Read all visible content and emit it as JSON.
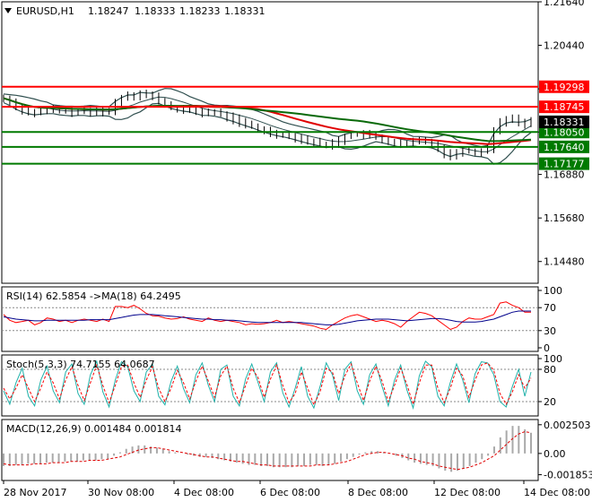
{
  "chart_data": [
    {
      "type": "candlestick",
      "title": "EURUSD,H1",
      "ohlc": {
        "open": "1.18247",
        "high": "1.18333",
        "low": "1.18233",
        "close": "1.18331"
      },
      "y_ticks": [
        "1.21640",
        "1.20440",
        "1.19240",
        "1.18050",
        "1.16880",
        "1.15680",
        "1.14480"
      ],
      "ylim": [
        1.1388,
        1.2164
      ],
      "horizontal_lines": [
        {
          "value": 1.19298,
          "label": "1.19298",
          "color": "#ff0000"
        },
        {
          "value": 1.18745,
          "label": "1.18745",
          "color": "#ff0000"
        },
        {
          "value": 1.1805,
          "label": "1.18050",
          "color": "#007a00"
        },
        {
          "value": 1.1764,
          "label": "1.17640",
          "color": "#007a00"
        },
        {
          "value": 1.17177,
          "label": "1.17177",
          "color": "#007a00"
        }
      ],
      "current_price": {
        "value": 1.18331,
        "label": "1.18331",
        "color": "#000000"
      },
      "price_series": [
        1.1898,
        1.1888,
        1.1875,
        1.1866,
        1.186,
        1.1858,
        1.1862,
        1.1865,
        1.1868,
        1.1866,
        1.1862,
        1.186,
        1.1864,
        1.1862,
        1.1858,
        1.1866,
        1.1862,
        1.186,
        1.1886,
        1.19,
        1.1908,
        1.1905,
        1.1912,
        1.1906,
        1.1902,
        1.1892,
        1.188,
        1.1872,
        1.1868,
        1.1866,
        1.1866,
        1.1862,
        1.1858,
        1.186,
        1.1858,
        1.1854,
        1.1846,
        1.184,
        1.1832,
        1.1826,
        1.182,
        1.1813,
        1.1808,
        1.1803,
        1.18,
        1.1798,
        1.1795,
        1.179,
        1.1785,
        1.178,
        1.1776,
        1.1772,
        1.1768,
        1.1774,
        1.1782,
        1.1792,
        1.1798,
        1.18,
        1.1798,
        1.1794,
        1.179,
        1.1784,
        1.1778,
        1.1772,
        1.1768,
        1.1774,
        1.1778,
        1.1782,
        1.178,
        1.1772,
        1.1762,
        1.1746,
        1.1738,
        1.175,
        1.1756,
        1.1752,
        1.1748,
        1.1754,
        1.176,
        1.1808,
        1.1833,
        1.1842,
        1.184,
        1.1832,
        1.1828,
        1.1833
      ]
    },
    {
      "type": "line",
      "title": "RSI(14) 62.5854  ->MA(18) 64.2495",
      "y_ticks": [
        "100",
        "70",
        "30",
        "0"
      ],
      "ylim": [
        0,
        100
      ],
      "levels": [
        30,
        70
      ],
      "series": [
        {
          "color": "#ff0000",
          "values": [
            58,
            48,
            44,
            46,
            48,
            40,
            44,
            52,
            50,
            46,
            48,
            44,
            48,
            50,
            48,
            46,
            50,
            46,
            72,
            72,
            70,
            74,
            68,
            60,
            56,
            55,
            52,
            50,
            51,
            54,
            50,
            48,
            46,
            52,
            48,
            46,
            48,
            46,
            44,
            40,
            42,
            41,
            42,
            44,
            48,
            44,
            46,
            44,
            42,
            40,
            38,
            34,
            32,
            40,
            46,
            52,
            56,
            58,
            54,
            50,
            46,
            48,
            46,
            42,
            36,
            46,
            54,
            62,
            60,
            56,
            48,
            40,
            32,
            36,
            46,
            52,
            50,
            50,
            54,
            58,
            78,
            80,
            74,
            70,
            62,
            62
          ]
        },
        {
          "color": "#00008b",
          "values": [
            54,
            52,
            50,
            49,
            48,
            47,
            47,
            48,
            48,
            48,
            48,
            48,
            48,
            48,
            49,
            49,
            49,
            49,
            51,
            53,
            55,
            57,
            58,
            58,
            58,
            57,
            56,
            55,
            54,
            53,
            52,
            51,
            50,
            50,
            49,
            49,
            48,
            48,
            47,
            46,
            45,
            44,
            44,
            44,
            44,
            44,
            44,
            44,
            44,
            43,
            42,
            41,
            40,
            40,
            41,
            43,
            45,
            47,
            48,
            49,
            50,
            50,
            50,
            49,
            48,
            47,
            48,
            49,
            50,
            51,
            51,
            50,
            48,
            46,
            45,
            45,
            45,
            46,
            48,
            50,
            54,
            58,
            62,
            64,
            64,
            64
          ]
        }
      ]
    },
    {
      "type": "line",
      "title": "Stoch(5,3,3) 74.7155 64.0687",
      "y_ticks": [
        "100",
        "80",
        "20"
      ],
      "ylim": [
        0,
        100
      ],
      "levels": [
        20,
        80
      ],
      "series": [
        {
          "color": "#20b2aa",
          "values": [
            40,
            15,
            55,
            82,
            30,
            12,
            60,
            86,
            40,
            18,
            75,
            90,
            35,
            15,
            70,
            95,
            38,
            10,
            60,
            94,
            85,
            40,
            20,
            75,
            90,
            30,
            14,
            58,
            86,
            44,
            18,
            70,
            92,
            50,
            20,
            80,
            88,
            30,
            12,
            62,
            90,
            56,
            20,
            75,
            92,
            36,
            10,
            45,
            85,
            30,
            8,
            48,
            92,
            70,
            22,
            80,
            94,
            40,
            15,
            70,
            90,
            48,
            12,
            60,
            88,
            42,
            8,
            68,
            95,
            85,
            30,
            12,
            56,
            90,
            60,
            18,
            72,
            94,
            92,
            70,
            20,
            10,
            48,
            80,
            30,
            75
          ]
        },
        {
          "color": "#ff0000",
          "values": [
            45,
            25,
            45,
            70,
            45,
            20,
            45,
            75,
            55,
            25,
            60,
            85,
            50,
            22,
            55,
            88,
            50,
            18,
            50,
            85,
            88,
            55,
            28,
            60,
            85,
            45,
            20,
            45,
            78,
            55,
            25,
            58,
            86,
            58,
            28,
            68,
            86,
            45,
            18,
            50,
            82,
            65,
            28,
            62,
            88,
            50,
            18,
            35,
            75,
            45,
            14,
            38,
            82,
            75,
            35,
            68,
            90,
            55,
            22,
            58,
            86,
            58,
            20,
            50,
            82,
            52,
            15,
            55,
            88,
            88,
            45,
            18,
            45,
            82,
            68,
            28,
            60,
            88,
            92,
            78,
            35,
            15,
            38,
            70,
            45,
            64
          ]
        }
      ]
    },
    {
      "type": "bar",
      "title": "MACD(12,26,9) 0.001484 0.001814",
      "y_ticks": [
        "0.002503",
        "0.00",
        "-0.001853"
      ],
      "ylim": [
        -0.0022,
        0.0028
      ],
      "histogram": [
        -0.0011,
        -0.0011,
        -0.001,
        -0.001,
        -0.0009,
        -0.0009,
        -0.0009,
        -0.0008,
        -0.0008,
        -0.0008,
        -0.0007,
        -0.0007,
        -0.0007,
        -0.0006,
        -0.0006,
        -0.0006,
        -0.0005,
        -0.0005,
        -0.0002,
        0.0001,
        0.0004,
        0.0006,
        0.0007,
        0.0007,
        0.0006,
        0.0005,
        0.0004,
        0.0002,
        0.0001,
        0.0,
        -0.0001,
        -0.0002,
        -0.0003,
        -0.0003,
        -0.0004,
        -0.0005,
        -0.0006,
        -0.0007,
        -0.0008,
        -0.0009,
        -0.001,
        -0.001,
        -0.0011,
        -0.0011,
        -0.0012,
        -0.0012,
        -0.0012,
        -0.0012,
        -0.0011,
        -0.0011,
        -0.001,
        -0.001,
        -0.0011,
        -0.001,
        -0.0009,
        -0.0007,
        -0.0005,
        -0.0003,
        -0.0001,
        0.0001,
        0.0002,
        0.0002,
        0.0001,
        0.0,
        -0.0002,
        -0.0004,
        -0.0006,
        -0.0008,
        -0.0009,
        -0.001,
        -0.0011,
        -0.0013,
        -0.0015,
        -0.0016,
        -0.0015,
        -0.0013,
        -0.0011,
        -0.0008,
        -0.0005,
        -0.0002,
        0.0006,
        0.0014,
        0.002,
        0.0024,
        0.0024,
        0.0021,
        0.0018
      ],
      "signal": [
        -0.0009,
        -0.001,
        -0.001,
        -0.001,
        -0.001,
        -0.0009,
        -0.0009,
        -0.0009,
        -0.0008,
        -0.0008,
        -0.0008,
        -0.0007,
        -0.0007,
        -0.0007,
        -0.0006,
        -0.0006,
        -0.0006,
        -0.0005,
        -0.0004,
        -0.0003,
        -0.0001,
        0.0001,
        0.0003,
        0.0004,
        0.0005,
        0.0005,
        0.0004,
        0.0003,
        0.0002,
        0.0001,
        0.0,
        -0.0001,
        -0.0002,
        -0.0003,
        -0.0003,
        -0.0004,
        -0.0005,
        -0.0006,
        -0.0007,
        -0.0007,
        -0.0008,
        -0.0009,
        -0.001,
        -0.001,
        -0.0011,
        -0.0011,
        -0.0011,
        -0.0011,
        -0.0011,
        -0.0011,
        -0.0011,
        -0.001,
        -0.001,
        -0.001,
        -0.0009,
        -0.0008,
        -0.0007,
        -0.0005,
        -0.0003,
        -0.0001,
        0.0,
        0.0001,
        0.0001,
        0.0,
        -0.0001,
        -0.0002,
        -0.0004,
        -0.0005,
        -0.0007,
        -0.0008,
        -0.0009,
        -0.0011,
        -0.0012,
        -0.0013,
        -0.0014,
        -0.0013,
        -0.0012,
        -0.001,
        -0.0008,
        -0.0005,
        -0.0002,
        0.0003,
        0.0008,
        0.0013,
        0.0017,
        0.0019,
        0.0018
      ]
    }
  ],
  "x_labels": [
    "28 Nov 2017",
    "30 Nov 08:00",
    "4 Dec 08:00",
    "6 Dec 08:00",
    "8 Dec 08:00",
    "12 Dec 08:00",
    "14 Dec 08:00"
  ]
}
